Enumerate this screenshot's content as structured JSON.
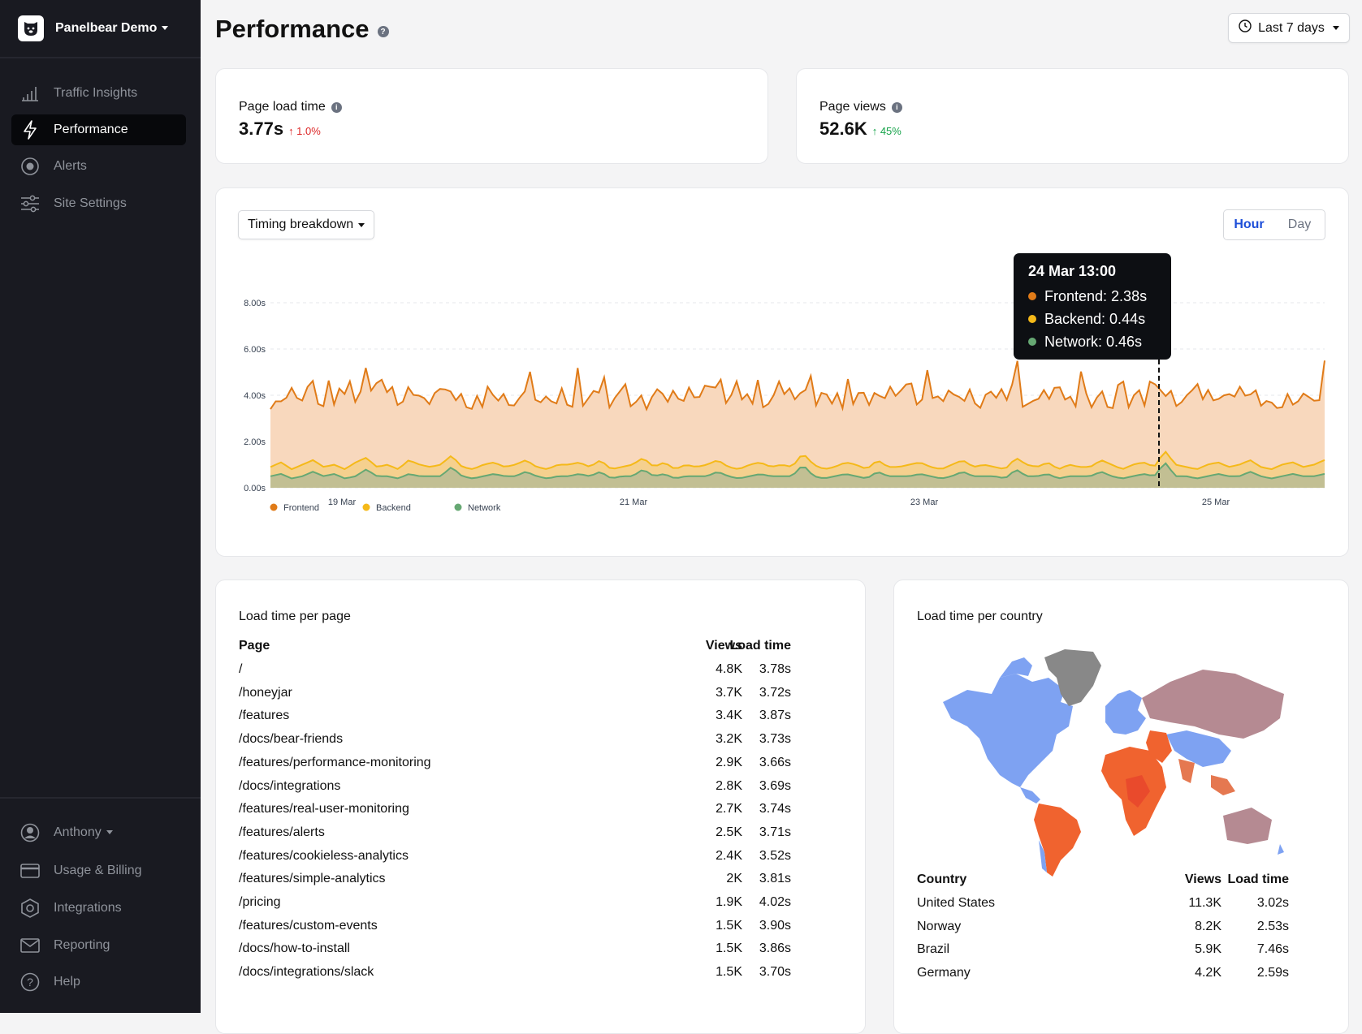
{
  "sidebar": {
    "brand": "Panelbear Demo",
    "nav": [
      {
        "label": "Traffic Insights",
        "icon": "bar-chart-icon"
      },
      {
        "label": "Performance",
        "icon": "lightning-icon",
        "active": true
      },
      {
        "label": "Alerts",
        "icon": "alert-circle-icon"
      },
      {
        "label": "Site Settings",
        "icon": "sliders-icon"
      }
    ],
    "bottom": [
      {
        "label": "Anthony",
        "icon": "user-icon"
      },
      {
        "label": "Usage & Billing",
        "icon": "credit-card-icon"
      },
      {
        "label": "Integrations",
        "icon": "hexagon-icon"
      },
      {
        "label": "Reporting",
        "icon": "envelope-icon"
      },
      {
        "label": "Help",
        "icon": "question-icon"
      }
    ]
  },
  "header": {
    "title": "Performance",
    "range": "Last 7 days"
  },
  "kpis": {
    "load": {
      "label": "Page load time",
      "value": "3.77s",
      "delta": "↑ 1.0%",
      "delta_color": "#dc2626"
    },
    "views": {
      "label": "Page views",
      "value": "52.6K",
      "delta": "↑ 45%",
      "delta_color": "#16a34a"
    }
  },
  "chart_panel": {
    "dropdown": "Timing breakdown",
    "seg_hour": "Hour",
    "seg_day": "Day",
    "tooltip": {
      "title": "24 Mar 13:00",
      "frontend": "Frontend: 2.38s",
      "backend": "Backend: 0.44s",
      "network": "Network: 0.46s"
    }
  },
  "chart_data": {
    "type": "area",
    "ylim": [
      0,
      8
    ],
    "yticks": [
      "0.00s",
      "2.00s",
      "4.00s",
      "6.00s",
      "8.00s"
    ],
    "xticks": [
      "19 Mar",
      "21 Mar",
      "23 Mar",
      "25 Mar"
    ],
    "colors": {
      "frontend": "#e07b18",
      "backend": "#f5b919",
      "network": "#66a873"
    },
    "series": [
      {
        "name": "Frontend",
        "values": [
          3.4,
          5.6,
          3.5,
          3.6,
          4.9,
          3.3,
          3.8,
          3.5,
          3.9,
          3.7,
          4.3,
          3.7,
          4.7,
          3.8,
          3.6,
          4.2,
          3.6,
          4.7,
          3.9,
          3.7,
          4.6,
          5.4,
          4.0,
          3.7,
          3.1,
          4.9,
          3.6,
          4.1,
          3.6,
          4.5,
          4.0,
          3.5,
          4.0,
          3.6,
          4.7,
          4.3,
          3.8,
          3.2,
          4.7,
          3.7,
          4.4,
          4.1,
          3.3,
          4.1,
          4.0,
          3.5,
          5.3,
          4.1,
          4.9,
          4.4,
          3.4,
          4.6,
          3.6,
          4.3,
          4.6,
          3.2,
          5.4,
          4.3,
          3.8,
          4.2,
          4.4,
          3.7,
          4.6,
          3.9,
          3.2,
          4.8,
          4.2,
          5.8,
          4.1,
          4.2,
          4.0,
          4.4,
          4.3,
          4.1,
          3.9,
          3.3,
          4.8,
          4.3,
          3.4,
          3.8,
          4.5,
          4.3,
          4.8,
          4.1,
          4.0,
          4.2,
          3.7,
          4.0,
          3.9,
          3.3,
          3.9,
          3.5,
          3.9,
          3.6,
          3.7,
          4.0,
          3.9,
          4.6,
          3.3,
          4.5,
          3.9,
          3.4,
          4.3,
          4.2,
          3.2,
          3.4,
          4.7,
          4.7,
          3.3,
          4.0,
          4.0,
          4.3,
          4.0,
          5.7,
          4.3,
          3.4,
          4.5,
          4.1,
          3.4,
          4.3,
          4.3,
          4.0,
          3.8,
          3.7,
          3.5,
          3.5,
          4.3,
          4.5,
          4.1,
          3.1,
          3.8,
          4.3,
          3.3,
          4.2,
          3.4,
          3.4,
          3.8,
          4.2,
          3.4,
          4.1,
          3.4,
          3.4,
          3.3,
          3.6,
          3.6,
          3.5,
          3.9,
          3.9,
          4.0,
          4.2,
          3.6,
          3.7,
          5.1,
          4.6,
          4.1,
          3.5,
          4.6,
          3.6,
          4.0,
          3.2,
          3.6,
          3.8,
          4.1,
          4.3,
          3.8,
          3.7,
          4.1,
          4.0,
          3.5,
          3.9,
          5.1,
          4.1,
          3.9,
          3.5,
          3.6,
          3.7,
          4.3,
          3.5,
          3.6,
          3.5,
          5.3,
          4.3,
          3.5,
          3.3,
          4.4,
          4.2,
          4.0,
          3.6,
          3.4,
          4.1,
          4.3,
          3.6,
          3.9,
          4.3,
          4.7,
          3.8,
          5.3,
          4.3,
          3.4,
          3.5,
          3.9,
          3.8,
          3.9,
          3.8,
          3.6,
          4.2,
          3.8,
          4.5,
          4.5,
          4.2,
          3.7,
          3.4,
          4.1,
          4.4,
          3.6,
          4.0,
          3.8,
          3.8,
          4.3,
          3.3,
          3.1,
          3.7,
          3.9,
          3.5,
          4.2,
          3.6,
          4.4,
          4.2,
          3.9,
          3.5,
          4.2,
          3.8,
          3.9,
          3.7,
          3.7,
          4.1,
          4.2,
          4.1,
          3.9,
          3.7,
          4.9,
          4.2,
          3.8,
          3.6,
          4.8,
          4.5,
          4.0,
          3.6,
          3.6,
          4.3,
          3.7,
          4.2,
          3.7,
          3.9,
          3.7,
          4.8,
          4.3,
          4.9,
          4.2,
          3.4,
          3.9,
          4.4,
          3.8,
          4.0,
          4.7,
          4.9,
          4.8,
          3.7,
          3.2,
          3.8,
          4.0,
          4.1,
          3.7,
          4.8,
          4.1,
          3.7,
          3.7,
          4.0,
          5.0,
          3.6,
          4.5,
          4.2,
          4.0,
          3.4,
          4.0,
          4.8,
          4.6,
          3.8,
          3.4,
          3.5,
          4.5,
          3.9,
          3.6,
          3.7,
          4.1,
          4.0,
          4.1,
          4.0,
          4.7,
          3.9,
          4.0,
          4.1,
          3.9,
          4.1,
          4.4,
          4.1,
          3.9,
          3.6,
          4.1,
          3.9,
          3.7,
          4.4,
          3.8,
          3.9,
          4.4,
          4.2,
          4.3,
          5.0,
          4.3,
          4.0,
          3.5,
          4.6,
          4.2,
          4.1,
          3.6,
          5.2,
          4.1,
          3.3,
          3.6,
          3.6,
          3.8,
          3.5,
          4.0,
          4.3,
          3.8,
          3.2,
          3.8,
          4.6,
          4.9,
          4.5,
          3.9,
          3.5,
          3.7,
          4.6,
          3.6,
          4.3,
          3.5,
          4.6,
          4.0,
          4.3,
          4.6,
          3.5,
          5.4,
          4.7,
          4.1,
          4.1,
          3.9,
          3.9,
          4.4,
          4.3,
          3.8,
          4.1,
          3.8,
          4.3,
          4.5,
          4.3,
          3.7,
          4.3,
          4.2,
          3.7,
          4.6,
          3.9,
          4.6,
          4.4,
          3.7,
          5.2,
          4.3,
          3.8,
          3.6,
          3.6,
          3.7,
          4.4,
          3.8,
          4.9,
          5.0,
          5.2,
          3.9,
          3.3,
          3.8,
          4.2,
          3.5,
          4.1,
          3.6,
          4.1,
          3.3,
          4.4,
          4.1,
          3.7,
          4.7,
          4.2,
          4.4,
          3.8,
          3.8,
          4.0,
          3.9,
          4.4,
          4.0,
          3.7,
          3.4,
          4.9,
          4.2,
          4.5,
          3.8,
          3.6,
          5.0,
          3.7,
          3.4,
          3.8,
          3.7,
          4.0,
          4.1,
          3.9,
          4.3,
          3.9,
          3.4,
          4.3,
          3.4,
          3.7,
          4.6,
          4.0,
          3.8,
          4.4,
          3.5,
          4.1,
          4.0,
          4.6,
          3.7,
          3.9,
          5.7,
          4.6,
          3.3,
          3.5,
          3.5,
          4.2,
          3.5,
          4.9,
          4.8,
          3.8,
          3.6,
          4.0,
          3.7,
          4.2,
          4.1,
          3.9,
          4.7,
          5.1,
          4.1,
          3.6,
          3.7,
          4.2,
          4.4,
          4.5,
          4.2,
          4.4,
          3.9,
          3.4,
          3.9,
          4.3,
          4.5,
          3.9,
          4.7,
          4.2,
          3.5,
          4.0,
          3.8,
          5.3,
          3.4,
          3.4,
          3.7,
          5.2,
          4.3,
          3.3,
          3.8,
          3.6,
          3.9,
          3.9,
          3.7,
          3.6,
          4.6,
          3.5,
          3.9,
          3.3,
          3.1,
          3.6,
          3.4,
          3.7,
          4.0,
          4.5,
          4.0,
          4.0,
          4.6,
          4.0,
          3.8,
          3.4,
          4.3,
          4.1,
          4.0,
          4.0,
          3.4,
          4.4,
          3.8,
          4.5,
          3.6,
          3.5,
          4.2,
          4.8,
          4.4,
          3.8,
          4.6,
          4.4,
          3.7,
          4.3,
          4.2,
          3.8,
          4.8,
          3.8,
          3.8,
          4.0,
          4.2,
          5.6,
          3.8,
          3.5,
          4.2,
          4.6,
          3.6,
          4.3,
          4.3,
          3.8,
          4.6,
          4.1,
          4.4,
          3.9,
          4.9,
          5.0,
          3.9,
          4.2,
          3.2,
          4.3,
          3.9,
          4.5,
          4.1,
          4.4,
          3.7,
          3.8,
          4.3,
          5.0,
          3.7,
          4.2,
          3.3,
          4.0,
          4.1,
          4.4,
          4.1,
          3.6,
          4.5,
          3.9,
          4.1,
          3.5,
          4.4,
          4.3,
          3.9,
          3.9,
          4.1,
          4.5,
          4.4,
          3.7,
          3.8,
          3.9,
          4.4,
          4.0,
          3.4,
          3.6,
          4.4,
          3.5,
          3.8,
          4.3,
          3.4,
          3.7,
          4.0,
          4.2,
          3.4,
          4.4,
          4.1,
          3.5,
          3.4,
          4.1,
          4.0,
          4.2,
          4.6,
          3.3,
          4.1,
          3.6,
          3.6,
          3.9,
          3.3,
          3.9,
          4.2,
          3.8,
          4.2,
          3.8,
          4.6,
          4.0,
          3.7,
          3.7,
          4.5,
          3.7,
          3.5,
          4.5,
          5.5
        ]
      },
      {
        "name": "Backend",
        "values": [
          0.9,
          1.1,
          0.8,
          1.0,
          1.2,
          0.9,
          1.0,
          0.8,
          1.1,
          1.3,
          0.9,
          1.0,
          0.8,
          1.2,
          1.0,
          0.9,
          1.0,
          1.4,
          0.9,
          0.8,
          1.0,
          1.1,
          0.9,
          1.0,
          1.2,
          0.9,
          0.8,
          1.0,
          1.0,
          1.1,
          0.9,
          1.2,
          0.8,
          0.9,
          1.0,
          1.3,
          0.9,
          1.1,
          0.8,
          1.0,
          0.9,
          1.0,
          1.2,
          0.9,
          0.8,
          1.0,
          1.1,
          0.9,
          1.0,
          0.9,
          1.5,
          1.0,
          0.8,
          0.9,
          1.1,
          1.0,
          0.8,
          1.2,
          0.9,
          0.9,
          1.0,
          1.1,
          0.9,
          0.8,
          1.0,
          1.2,
          0.9,
          1.0,
          0.9,
          0.8,
          1.3,
          1.0,
          0.9,
          1.1,
          0.8,
          1.0,
          0.9,
          0.9,
          1.2,
          1.0,
          0.8,
          1.0,
          1.1,
          0.9,
          1.6,
          1.0,
          0.9,
          0.8,
          1.0,
          1.1,
          0.9,
          1.0,
          1.2,
          0.9,
          0.8,
          1.0,
          1.1,
          0.9,
          1.0,
          1.2
        ]
      },
      {
        "name": "Network",
        "values": [
          0.5,
          0.6,
          0.4,
          0.5,
          0.7,
          0.5,
          0.6,
          0.4,
          0.5,
          0.8,
          0.5,
          0.5,
          0.4,
          0.6,
          0.5,
          0.5,
          0.5,
          0.9,
          0.5,
          0.4,
          0.5,
          0.6,
          0.5,
          0.5,
          0.7,
          0.5,
          0.4,
          0.5,
          0.5,
          0.6,
          0.5,
          0.7,
          0.4,
          0.5,
          0.5,
          0.8,
          0.5,
          0.6,
          0.4,
          0.5,
          0.5,
          0.5,
          0.7,
          0.5,
          0.4,
          0.5,
          0.6,
          0.5,
          0.5,
          0.5,
          1.0,
          0.5,
          0.4,
          0.5,
          0.6,
          0.5,
          0.4,
          0.7,
          0.5,
          0.5,
          0.5,
          0.6,
          0.5,
          0.4,
          0.5,
          0.7,
          0.5,
          0.5,
          0.5,
          0.4,
          0.8,
          0.5,
          0.5,
          0.6,
          0.4,
          0.5,
          0.5,
          0.5,
          0.7,
          0.5,
          0.4,
          0.5,
          0.6,
          0.5,
          1.1,
          0.5,
          0.5,
          0.4,
          0.5,
          0.6,
          0.5,
          0.5,
          0.7,
          0.5,
          0.4,
          0.5,
          0.6,
          0.5,
          0.5,
          0.6
        ]
      }
    ],
    "legend": [
      {
        "name": "Frontend",
        "color": "#e07b18"
      },
      {
        "name": "Backend",
        "color": "#f5b919"
      },
      {
        "name": "Network",
        "color": "#66a873"
      }
    ]
  },
  "pages": {
    "title": "Load time per page",
    "headers": {
      "page": "Page",
      "views": "Views",
      "load": "Load time"
    },
    "rows": [
      {
        "page": "/",
        "views": "4.8K",
        "load": "3.78s"
      },
      {
        "page": "/honeyjar",
        "views": "3.7K",
        "load": "3.72s"
      },
      {
        "page": "/features",
        "views": "3.4K",
        "load": "3.87s"
      },
      {
        "page": "/docs/bear-friends",
        "views": "3.2K",
        "load": "3.73s"
      },
      {
        "page": "/features/performance-monitoring",
        "views": "2.9K",
        "load": "3.66s"
      },
      {
        "page": "/docs/integrations",
        "views": "2.8K",
        "load": "3.69s"
      },
      {
        "page": "/features/real-user-monitoring",
        "views": "2.7K",
        "load": "3.74s"
      },
      {
        "page": "/features/alerts",
        "views": "2.5K",
        "load": "3.71s"
      },
      {
        "page": "/features/cookieless-analytics",
        "views": "2.4K",
        "load": "3.52s"
      },
      {
        "page": "/features/simple-analytics",
        "views": "2K",
        "load": "3.81s"
      },
      {
        "page": "/pricing",
        "views": "1.9K",
        "load": "4.02s"
      },
      {
        "page": "/features/custom-events",
        "views": "1.5K",
        "load": "3.90s"
      },
      {
        "page": "/docs/how-to-install",
        "views": "1.5K",
        "load": "3.86s"
      },
      {
        "page": "/docs/integrations/slack",
        "views": "1.5K",
        "load": "3.70s"
      }
    ]
  },
  "countries": {
    "title": "Load time per country",
    "headers": {
      "country": "Country",
      "views": "Views",
      "load": "Load time"
    },
    "rows": [
      {
        "country": "United States",
        "views": "11.3K",
        "load": "3.02s"
      },
      {
        "country": "Norway",
        "views": "8.2K",
        "load": "2.53s"
      },
      {
        "country": "Brazil",
        "views": "5.9K",
        "load": "7.46s"
      },
      {
        "country": "Germany",
        "views": "4.2K",
        "load": "2.59s"
      }
    ]
  }
}
